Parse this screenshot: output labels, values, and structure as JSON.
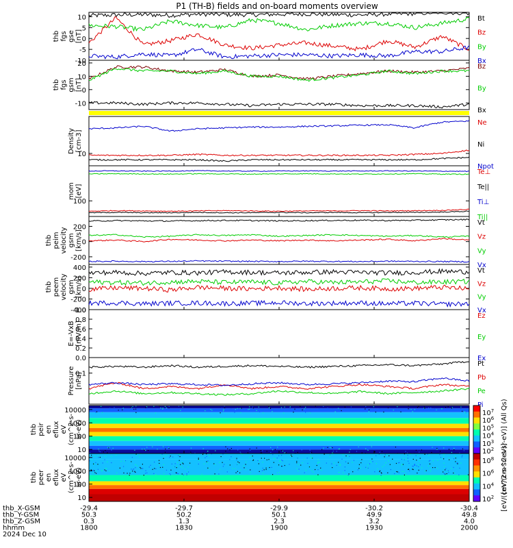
{
  "title": "P1 (TH-B) fields and on-board moments overview",
  "chart_data": [
    {
      "type": "line",
      "panel": "fgs_gse",
      "ylabel": [
        "thb",
        "fgs",
        "gse",
        "[nT]"
      ],
      "yticks": [
        10,
        5,
        0,
        -5,
        -10
      ],
      "ylim": [
        -10,
        12
      ],
      "series": [
        {
          "name": "Bt",
          "color": "#000000",
          "values": [
            10.5,
            10.8,
            11.0,
            10.6,
            11.2,
            11.0,
            10.9,
            11.1,
            11.3,
            11.0,
            10.8,
            11.2,
            11.5,
            12.0,
            11.6
          ]
        },
        {
          "name": "Bz",
          "color": "#dd0000",
          "values": [
            -2,
            9.5,
            -3,
            -1,
            2,
            -3,
            -4.5,
            -3,
            -2,
            -3.5,
            -5,
            -1,
            -4,
            1,
            -5
          ]
        },
        {
          "name": "By",
          "color": "#00cc00",
          "values": [
            6,
            5.5,
            4,
            8,
            6,
            5,
            8.5,
            7,
            4,
            6,
            7,
            7,
            5,
            7,
            9
          ]
        },
        {
          "name": "Bx",
          "color": "#0000cc",
          "values": [
            -8,
            -8.5,
            -7,
            -8,
            -5,
            -8.5,
            -8,
            -7.5,
            -7.5,
            -8,
            -7.5,
            -8,
            -6,
            -6,
            -4
          ]
        }
      ]
    },
    {
      "type": "line",
      "panel": "fgs_gsm",
      "ylabel": [
        "thb",
        "fgs",
        "gsm",
        "[nT]"
      ],
      "yticks": [
        20,
        10,
        0,
        -10
      ],
      "ylim": [
        -15,
        22
      ],
      "series": [
        {
          "name": "Bz",
          "color": "#7a0000",
          "values": [
            8,
            17,
            17,
            14,
            13,
            15,
            10,
            11,
            8,
            10,
            12,
            14,
            13,
            14,
            16
          ]
        },
        {
          "name": "By",
          "color": "#00cc00",
          "values": [
            7,
            16,
            14,
            14,
            12,
            14,
            10,
            10,
            7,
            9,
            11,
            14,
            12,
            14,
            14
          ]
        },
        {
          "name": "Bx",
          "color": "#000000",
          "values": [
            -10,
            -10,
            -11,
            -10,
            -10,
            -11,
            -12,
            -11,
            -11,
            -11,
            -12,
            -12,
            -12,
            -13,
            -11
          ]
        }
      ]
    },
    {
      "type": "line",
      "panel": "density",
      "ylabel": [
        "Density",
        "[cm-3]"
      ],
      "yticks": [
        10
      ],
      "yscale": "log",
      "ylim": [
        5,
        80
      ],
      "series": [
        {
          "name": "Ne",
          "color": "#dd0000",
          "values": [
            9,
            9,
            9,
            9,
            9.5,
            9,
            9,
            9,
            9,
            9,
            9,
            9,
            9.5,
            10,
            12
          ]
        },
        {
          "name": "Ni",
          "color": "#000000",
          "values": [
            7,
            7,
            7,
            7,
            7,
            6.5,
            7,
            7,
            7,
            7,
            7,
            7,
            7,
            7.5,
            8
          ]
        },
        {
          "name": "Npot",
          "color": "#0000cc",
          "values": [
            40,
            42,
            46,
            35,
            40,
            42,
            44,
            44,
            46,
            47,
            49,
            50,
            42,
            58,
            62
          ]
        }
      ]
    },
    {
      "type": "line",
      "panel": "temperature",
      "ylabel": [
        "mom",
        "[eV]"
      ],
      "yticks": [
        100
      ],
      "yscale": "log",
      "ylim": [
        30,
        1500
      ],
      "series": [
        {
          "name": "Te⊥",
          "color": "#dd0000",
          "values": [
            45,
            47,
            46,
            45,
            46,
            47,
            46,
            45,
            46,
            46,
            47,
            46,
            47,
            48,
            52
          ]
        },
        {
          "name": "Te||",
          "color": "#000000",
          "values": [
            40,
            41,
            40,
            40,
            41,
            40,
            40,
            41,
            40,
            41,
            40,
            41,
            41,
            42,
            45
          ]
        },
        {
          "name": "Ti⊥",
          "color": "#0000cc",
          "values": [
            1000,
            1010,
            990,
            1000,
            1020,
            1000,
            990,
            1000,
            1010,
            1000,
            1000,
            1010,
            1000,
            990,
            980
          ]
        },
        {
          "name": "Ti||",
          "color": "#00cc00",
          "values": [
            800,
            810,
            800,
            790,
            810,
            800,
            790,
            800,
            810,
            800,
            790,
            800,
            810,
            790,
            780
          ]
        }
      ]
    },
    {
      "type": "line",
      "panel": "peim_velocity",
      "ylabel": [
        "thb",
        "peim",
        "velocity",
        "gsm",
        "[km/s]"
      ],
      "yticks": [
        200,
        0,
        -200
      ],
      "ylim": [
        -300,
        330
      ],
      "series": [
        {
          "name": "Vt",
          "color": "#000000",
          "values": [
            270,
            275,
            272,
            270,
            275,
            278,
            276,
            272,
            275,
            278,
            280,
            276,
            280,
            285,
            290
          ]
        },
        {
          "name": "Vz",
          "color": "#dd0000",
          "values": [
            10,
            20,
            0,
            30,
            20,
            10,
            20,
            10,
            20,
            10,
            20,
            30,
            10,
            40,
            20
          ]
        },
        {
          "name": "Vy",
          "color": "#00cc00",
          "values": [
            80,
            90,
            60,
            70,
            90,
            80,
            90,
            70,
            80,
            90,
            80,
            70,
            80,
            60,
            70
          ]
        },
        {
          "name": "Vx",
          "color": "#0000cc",
          "values": [
            -260,
            -258,
            -262,
            -260,
            -255,
            -258,
            -260,
            -262,
            -258,
            -260,
            -262,
            -258,
            -260,
            -262,
            -264
          ]
        }
      ]
    },
    {
      "type": "line",
      "panel": "peem_velocity",
      "ylabel": [
        "thb",
        "peem",
        "velocity",
        "gsm",
        "[km/s]"
      ],
      "yticks": [
        400,
        200,
        0,
        -200,
        -400
      ],
      "ylim": [
        -400,
        450
      ],
      "series": [
        {
          "name": "Vt",
          "color": "#000000",
          "values": [
            290,
            300,
            280,
            300,
            290,
            310,
            300,
            290,
            300,
            310,
            300,
            290,
            300,
            320,
            310
          ]
        },
        {
          "name": "Vz",
          "color": "#dd0000",
          "values": [
            -20,
            10,
            0,
            -30,
            20,
            0,
            -10,
            10,
            -20,
            0,
            10,
            -10,
            0,
            20,
            -10
          ]
        },
        {
          "name": "Vy",
          "color": "#00cc00",
          "values": [
            120,
            110,
            100,
            120,
            130,
            110,
            120,
            100,
            130,
            110,
            120,
            140,
            110,
            120,
            130
          ]
        },
        {
          "name": "Vx",
          "color": "#0000cc",
          "values": [
            -280,
            -270,
            -290,
            -280,
            -275,
            -285,
            -280,
            -270,
            -285,
            -280,
            -275,
            -290,
            -280,
            -300,
            -290
          ]
        }
      ]
    },
    {
      "type": "line",
      "panel": "efield",
      "ylabel": [
        "E=-VxB",
        "[mV/m]"
      ],
      "yticks": [
        1.0,
        0.8,
        0.6,
        0.4,
        0.2,
        0.0
      ],
      "ylim": [
        0,
        1.0
      ],
      "series": [
        {
          "name": "Ez",
          "color": "#dd0000",
          "values": []
        },
        {
          "name": "Ey",
          "color": "#00cc00",
          "values": []
        },
        {
          "name": "Ex",
          "color": "#0000cc",
          "values": []
        }
      ]
    },
    {
      "type": "line",
      "panel": "pressure",
      "ylabel": [
        "Pressure",
        "[nPa]"
      ],
      "yticks": [
        0.1
      ],
      "yscale": "log",
      "ylim": [
        0.025,
        0.2
      ],
      "series": [
        {
          "name": "Pt",
          "color": "#000000",
          "values": [
            0.13,
            0.135,
            0.13,
            0.14,
            0.13,
            0.135,
            0.14,
            0.135,
            0.13,
            0.135,
            0.14,
            0.145,
            0.14,
            0.15,
            0.17
          ]
        },
        {
          "name": "Pb",
          "color": "#dd0000",
          "values": [
            0.05,
            0.065,
            0.05,
            0.055,
            0.05,
            0.06,
            0.05,
            0.055,
            0.05,
            0.055,
            0.06,
            0.055,
            0.05,
            0.06,
            0.055
          ]
        },
        {
          "name": "Pe",
          "color": "#00cc00",
          "values": [
            0.04,
            0.045,
            0.04,
            0.042,
            0.04,
            0.038,
            0.04,
            0.045,
            0.042,
            0.04,
            0.044,
            0.04,
            0.042,
            0.045,
            0.05
          ]
        },
        {
          "name": "Pi",
          "color": "#0000cc",
          "values": [
            0.06,
            0.065,
            0.06,
            0.062,
            0.06,
            0.058,
            0.062,
            0.065,
            0.06,
            0.062,
            0.065,
            0.07,
            0.068,
            0.08,
            0.07
          ]
        }
      ]
    },
    {
      "type": "heatmap",
      "panel": "peir_en_eflux",
      "ylabel": [
        "thb",
        "peir",
        "en",
        "eflux",
        "eV",
        "(cm^2-s-",
        "sr-eV)"
      ],
      "yticks": [
        "10000",
        "1000",
        "100",
        "10"
      ],
      "yscale": "log",
      "ylim": [
        5,
        20000
      ],
      "colorbar": {
        "ticks": [
          "10^7",
          "10^6",
          "10^5",
          "10^4",
          "10^3",
          "10^2"
        ],
        "label": "[eV/(cm^2-s-sr-eV)] (All Qs)"
      }
    },
    {
      "type": "heatmap",
      "panel": "peer_en_eflux",
      "ylabel": [
        "thb",
        "peer",
        "en",
        "eflux",
        "eV",
        "(cm^2-s-",
        "sr-eV)"
      ],
      "yticks": [
        "10000",
        "1000",
        "100",
        "10"
      ],
      "yscale": "log",
      "ylim": [
        5,
        20000
      ],
      "colorbar": {
        "ticks": [
          "10^8",
          "10^6",
          "10^4",
          "10^2"
        ],
        "label": "[eV/(cm^2-s-sr-eV)]"
      }
    }
  ],
  "x_axis": {
    "row_labels": [
      "thb_X-GSM",
      "thb_Y-GSM",
      "thb_Z-GSM",
      "hhmm",
      "2024 Dec 10"
    ],
    "ticks": [
      {
        "x": "-29.4",
        "y": "50.3",
        "z": "0.3",
        "hhmm": "1800"
      },
      {
        "x": "-29.7",
        "y": "50.2",
        "z": "1.3",
        "hhmm": "1830"
      },
      {
        "x": "-29.9",
        "y": "50.1",
        "z": "2.3",
        "hhmm": "1900"
      },
      {
        "x": "-30.2",
        "y": "49.9",
        "z": "3.2",
        "hhmm": "1930"
      },
      {
        "x": "-30.4",
        "y": "49.8",
        "z": "4.0",
        "hhmm": "2000"
      }
    ]
  }
}
